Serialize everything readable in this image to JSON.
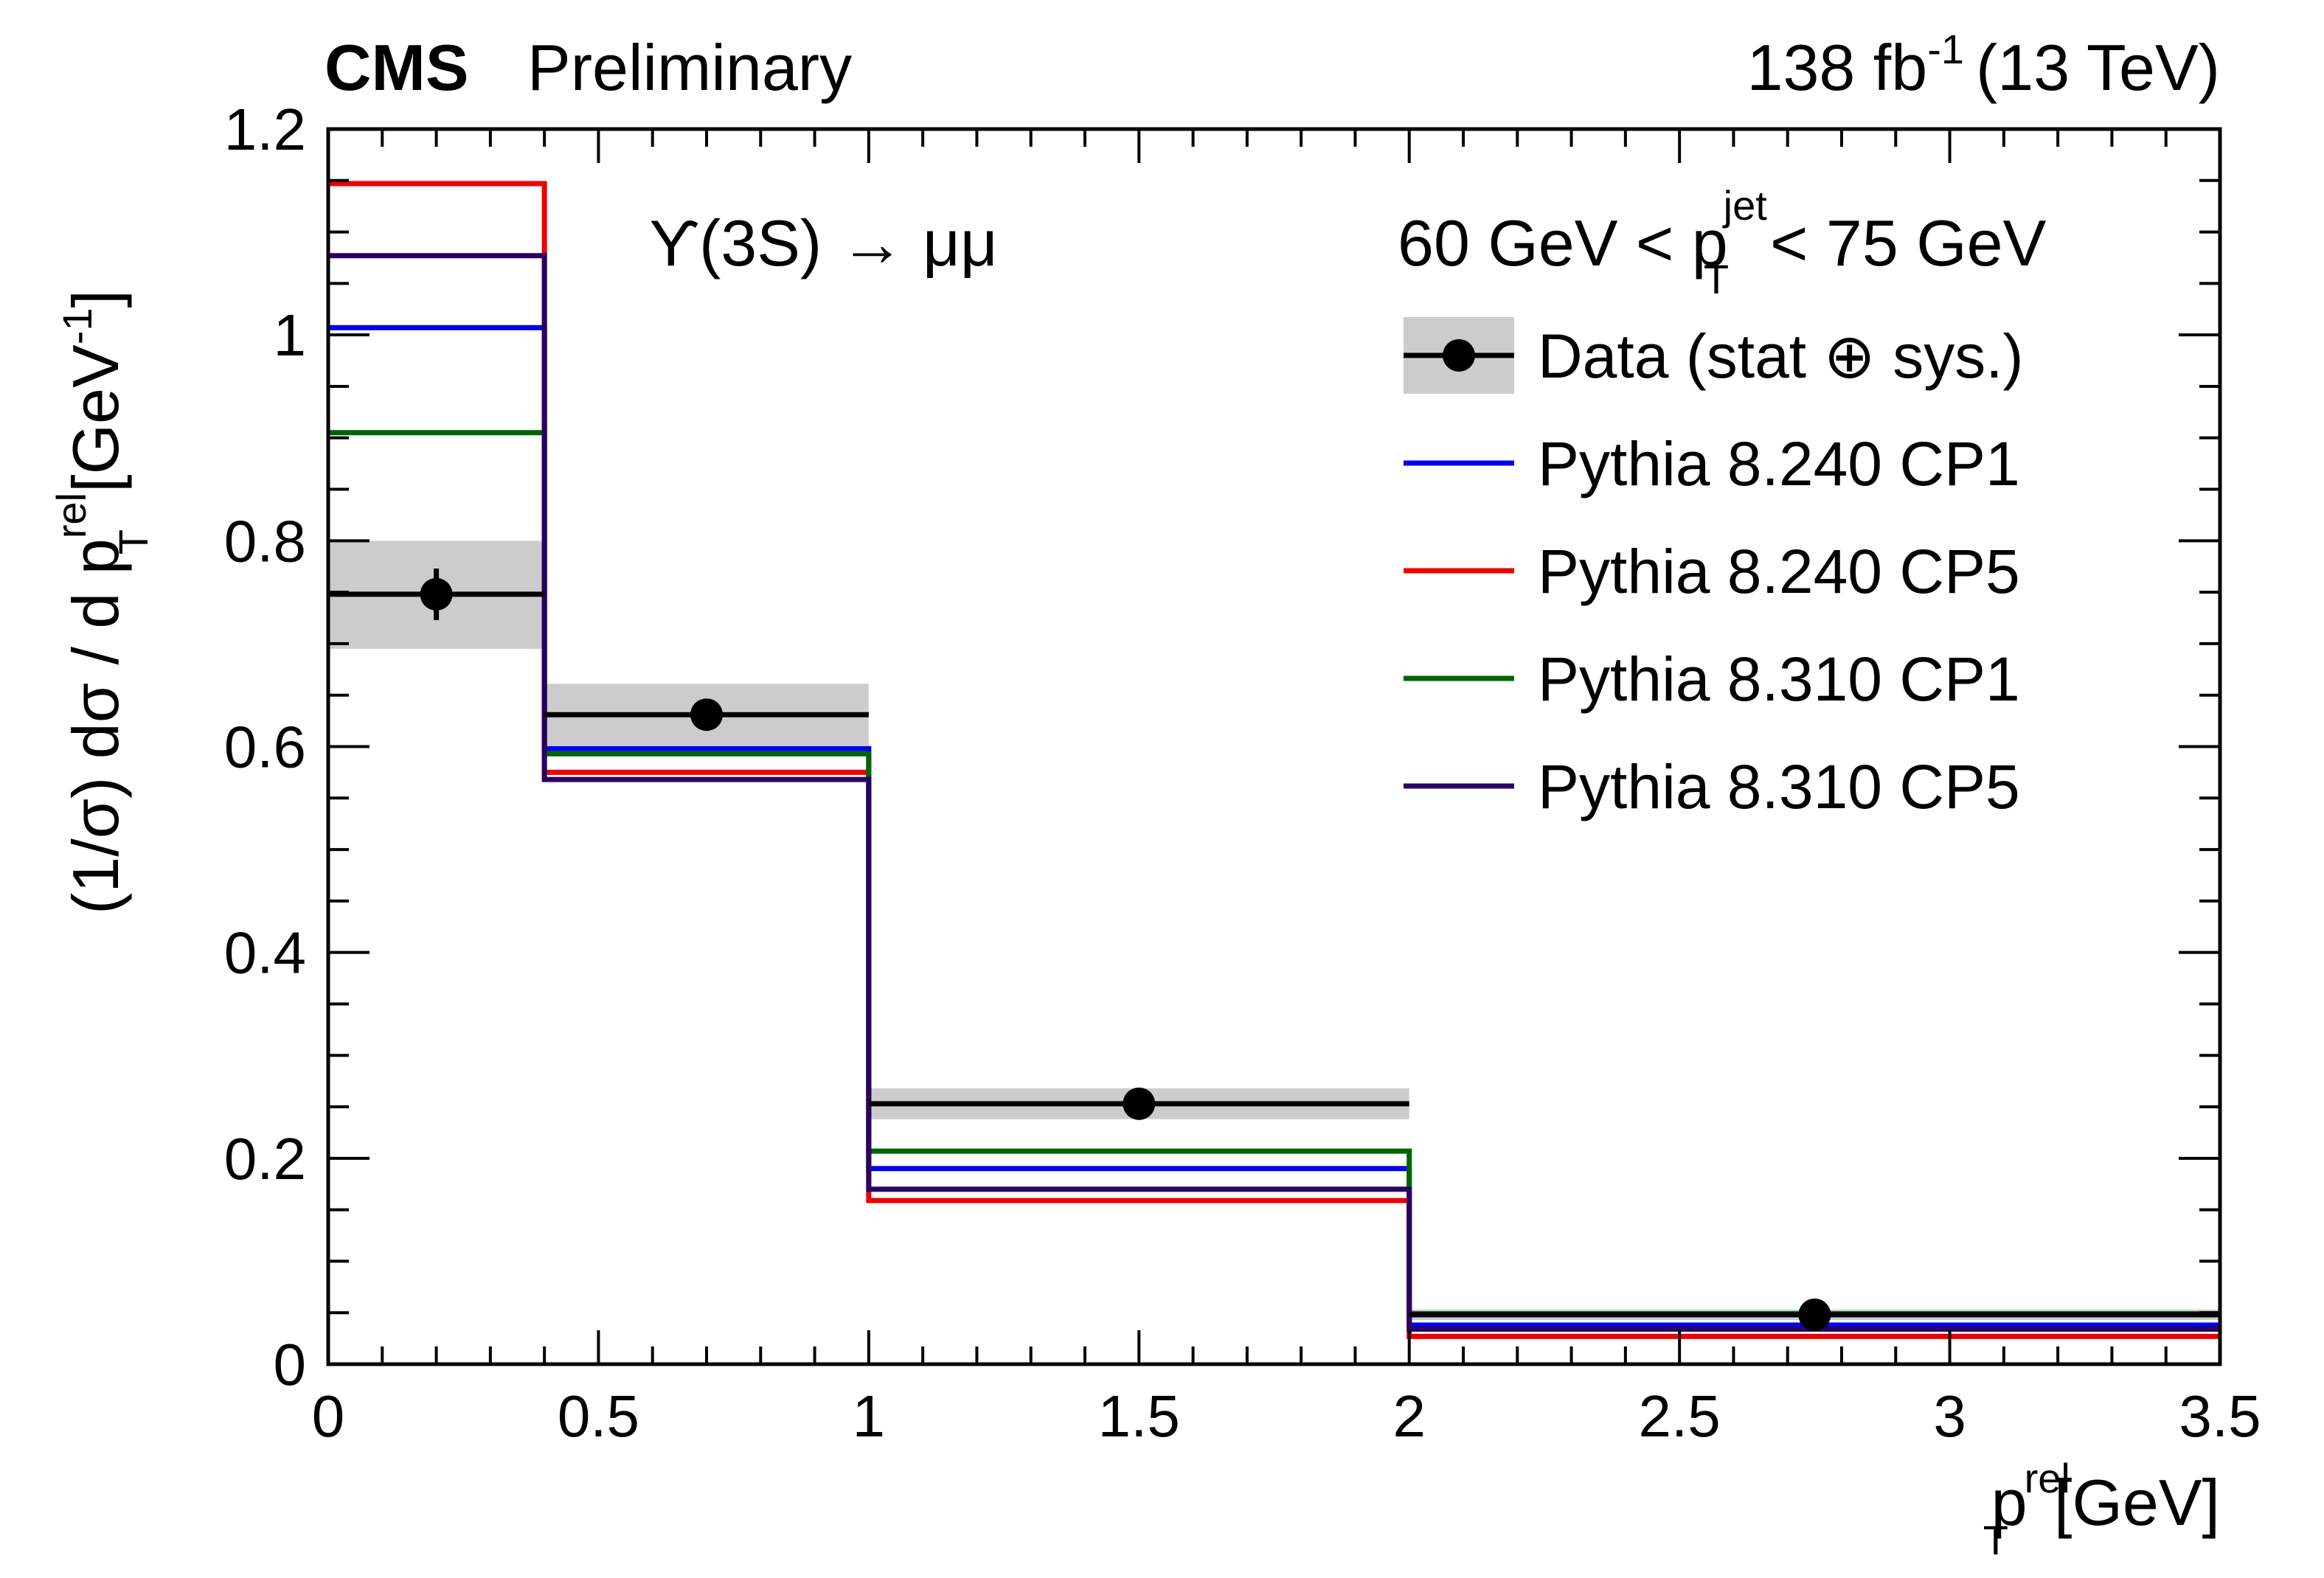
{
  "header": {
    "experiment": "CMS",
    "status": "Preliminary",
    "lumi_value": "138 fb",
    "lumi_exp": "-1",
    "energy": "(13 TeV)"
  },
  "annotations": {
    "process": "ϒ(3S) → μμ",
    "cut_left": "60 GeV < p",
    "cut_sup": "jet",
    "cut_sub": "T",
    "cut_right": "< 75 GeV"
  },
  "axes": {
    "x_main": "p",
    "x_sup": "rel",
    "x_sub": "T",
    "x_unit": "[GeV]",
    "y_main": "(1/σ) dσ / d p",
    "y_sup": "rel",
    "y_sub": "T",
    "y_unit_open": "[GeV",
    "y_unit_exp": "-1",
    "y_unit_close": "]"
  },
  "legend": [
    {
      "key": "data",
      "label": "Data (stat ⊕ sys.)"
    },
    {
      "key": "cp1_8240",
      "label": "Pythia 8.240 CP1"
    },
    {
      "key": "cp5_8240",
      "label": "Pythia 8.240 CP5"
    },
    {
      "key": "cp1_8310",
      "label": "Pythia 8.310 CP1"
    },
    {
      "key": "cp5_8310",
      "label": "Pythia 8.310 CP5"
    }
  ],
  "chart_data": {
    "type": "histogram",
    "title": "",
    "xlabel": "p_T^rel [GeV]",
    "ylabel": "(1/σ) dσ / d p_T^rel [GeV^-1]",
    "xlim": [
      0,
      3.5
    ],
    "ylim": [
      0,
      1.2
    ],
    "x_ticks": [
      0,
      0.5,
      1,
      1.5,
      2,
      2.5,
      3,
      3.5
    ],
    "x_tick_labels": [
      "0",
      "0.5",
      "1",
      "1.5",
      "2",
      "2.5",
      "3",
      "3.5"
    ],
    "y_ticks": [
      0,
      0.2,
      0.4,
      0.6,
      0.8,
      1,
      1.2
    ],
    "y_tick_labels": [
      "0",
      "0.2",
      "0.4",
      "0.6",
      "0.8",
      "1",
      "1.2"
    ],
    "bin_edges": [
      0,
      0.4,
      1,
      2,
      3.5
    ],
    "data": {
      "name": "Data (stat ⊕ sys.)",
      "x": [
        0.2,
        0.7,
        1.5,
        2.75
      ],
      "y": [
        0.748,
        0.631,
        0.253,
        0.048
      ],
      "y_err_stat": [
        0.025,
        0.008,
        0.006,
        0.004
      ],
      "band_low": [
        0.695,
        0.601,
        0.238,
        0.043
      ],
      "band_high": [
        0.8,
        0.661,
        0.268,
        0.053
      ]
    },
    "series": [
      {
        "name": "Pythia 8.240 CP1",
        "color": "#0000ee",
        "values": [
          1.007,
          0.598,
          0.19,
          0.038
        ]
      },
      {
        "name": "Pythia 8.240 CP5",
        "color": "#ee0000",
        "values": [
          1.147,
          0.575,
          0.159,
          0.027
        ]
      },
      {
        "name": "Pythia 8.310 CP1",
        "color": "#006400",
        "values": [
          0.905,
          0.593,
          0.207,
          0.049
        ]
      },
      {
        "name": "Pythia 8.310 CP5",
        "color": "#2a0060",
        "values": [
          1.077,
          0.568,
          0.17,
          0.034
        ]
      }
    ],
    "band_color": "#cccccc",
    "legend_position": "top-right"
  }
}
